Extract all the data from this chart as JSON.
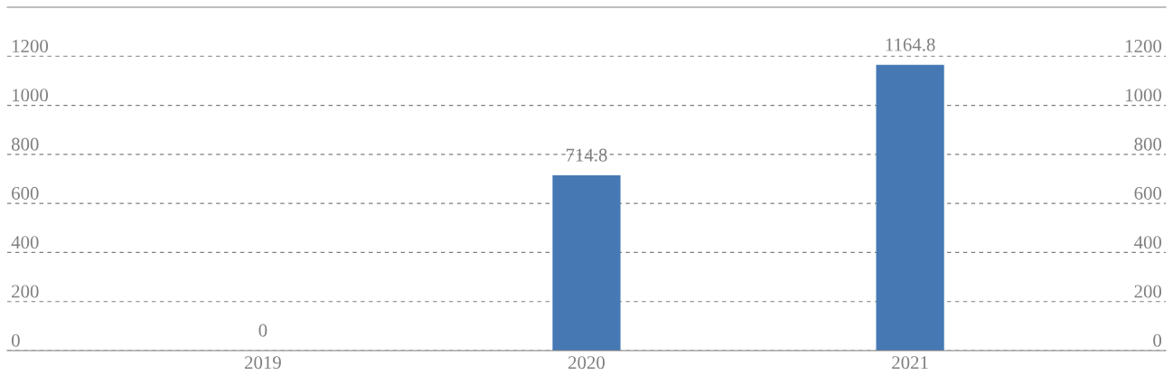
{
  "chart_data": {
    "type": "bar",
    "categories": [
      "2019",
      "2020",
      "2021"
    ],
    "values": [
      0,
      714.8,
      1164.8
    ],
    "color": "#4679b4",
    "ylim": [
      0,
      1400
    ],
    "yticks": [
      0,
      200,
      400,
      600,
      800,
      1000,
      1200
    ],
    "y2lim": [
      0,
      1400
    ],
    "y2ticks": [
      0,
      200,
      400,
      600,
      800,
      1000,
      1200
    ],
    "grid": "y",
    "line_style": "dashed",
    "data_labels": true,
    "legend": false
  }
}
